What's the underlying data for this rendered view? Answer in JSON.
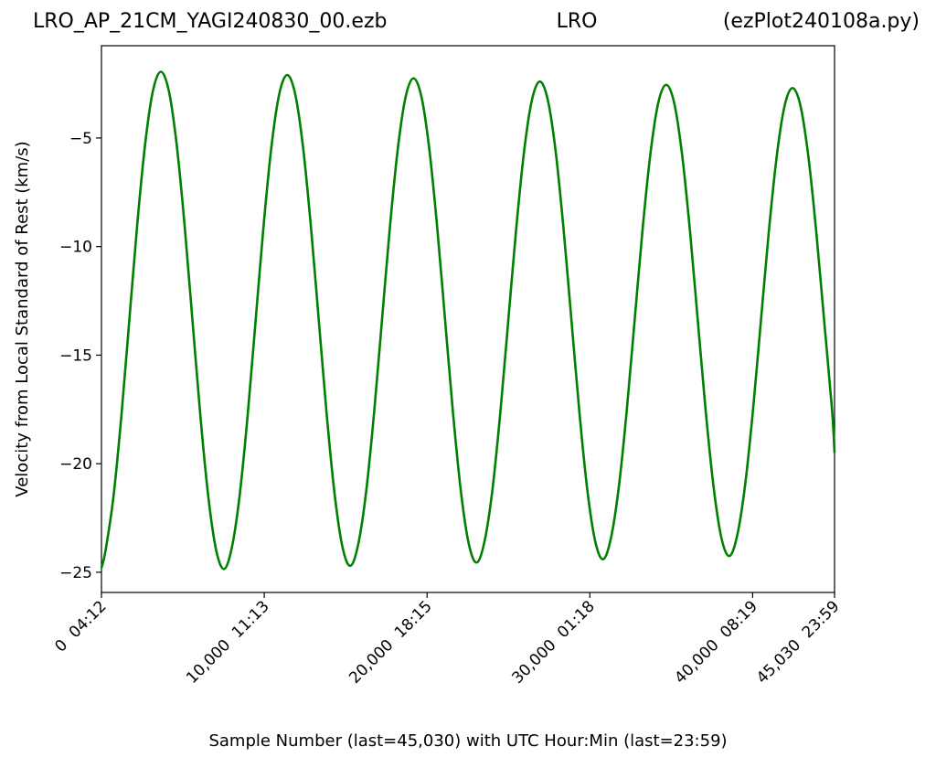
{
  "chart_data": {
    "type": "line",
    "title_left": "LRO_AP_21CM_YAGI240830_00.ezb",
    "title": "LRO",
    "title_right": "(ezPlot240108a.py)",
    "xlabel": "Sample Number (last=45,030) with UTC Hour:Min (last=23:59)",
    "ylabel": "Velocity from Local Standard of Rest (km/s)",
    "xlim": [
      0,
      45030
    ],
    "ylim": [
      -25.93,
      -0.75
    ],
    "xticks": [
      {
        "value": 0,
        "label": "0  04:12"
      },
      {
        "value": 10000,
        "label": "10,000  11:13"
      },
      {
        "value": 20000,
        "label": "20,000  18:15"
      },
      {
        "value": 30000,
        "label": "30,000  01:18"
      },
      {
        "value": 40000,
        "label": "40,000  08:19"
      },
      {
        "value": 45030,
        "label": "45,030  23:59"
      }
    ],
    "yticks": [
      {
        "value": -25,
        "label": "−25"
      },
      {
        "value": -20,
        "label": "−20"
      },
      {
        "value": -15,
        "label": "−15"
      },
      {
        "value": -10,
        "label": "−10"
      },
      {
        "value": -5,
        "label": "−5"
      }
    ],
    "x": [
      0,
      255,
      740,
      1225,
      1710,
      2195,
      2680,
      3165,
      3650,
      4135,
      4620,
      5105,
      5590,
      6075,
      6560,
      7045,
      7530,
      8015,
      8500,
      8985,
      9470,
      9955,
      10440,
      10925,
      11410,
      11895,
      12380,
      12865,
      13350,
      13835,
      14320,
      14805,
      15290,
      15775,
      16260,
      16745,
      17230,
      17715,
      18200,
      18685,
      19170,
      19655,
      20140,
      20625,
      21110,
      21595,
      22080,
      22565,
      23050,
      23535,
      24020,
      24505,
      24990,
      25475,
      25960,
      26445,
      26930,
      27415,
      27900,
      28385,
      28870,
      29355,
      29840,
      30325,
      30810,
      31295,
      31780,
      32265,
      32750,
      33235,
      33720,
      34205,
      34690,
      35175,
      35660,
      36145,
      36630,
      37115,
      37600,
      38085,
      38570,
      39055,
      39540,
      40025,
      40510,
      40995,
      41480,
      41965,
      42450,
      42935,
      43420,
      43905,
      44390,
      44875,
      45030
    ],
    "series": [
      {
        "color": "#008000",
        "values": [
          -24.8,
          -23.98,
          -21.5,
          -17.79,
          -13.4,
          -9.01,
          -5.3,
          -2.82,
          -1.95,
          -2.82,
          -5.3,
          -9.01,
          -13.4,
          -17.79,
          -21.5,
          -23.98,
          -24.85,
          -23.84,
          -21.39,
          -17.73,
          -13.4,
          -9.07,
          -5.41,
          -2.96,
          -2.1,
          -2.96,
          -5.41,
          -9.07,
          -13.4,
          -17.73,
          -21.39,
          -23.84,
          -24.7,
          -23.7,
          -21.28,
          -17.67,
          -13.4,
          -9.13,
          -5.52,
          -3.1,
          -2.25,
          -3.1,
          -5.52,
          -9.13,
          -13.4,
          -17.67,
          -21.28,
          -23.7,
          -24.55,
          -23.56,
          -21.18,
          -17.61,
          -13.4,
          -9.19,
          -5.62,
          -3.24,
          -2.4,
          -3.24,
          -5.62,
          -9.19,
          -13.4,
          -17.61,
          -21.18,
          -23.56,
          -24.4,
          -23.43,
          -21.07,
          -17.56,
          -13.4,
          -9.24,
          -5.73,
          -3.37,
          -2.55,
          -3.37,
          -5.73,
          -9.24,
          -13.4,
          -17.56,
          -21.07,
          -23.43,
          -24.25,
          -23.29,
          -20.96,
          -17.5,
          -13.4,
          -9.3,
          -5.84,
          -3.51,
          -2.7,
          -3.51,
          -5.84,
          -9.3,
          -13.4,
          -17.5,
          -19.5
        ]
      }
    ]
  }
}
